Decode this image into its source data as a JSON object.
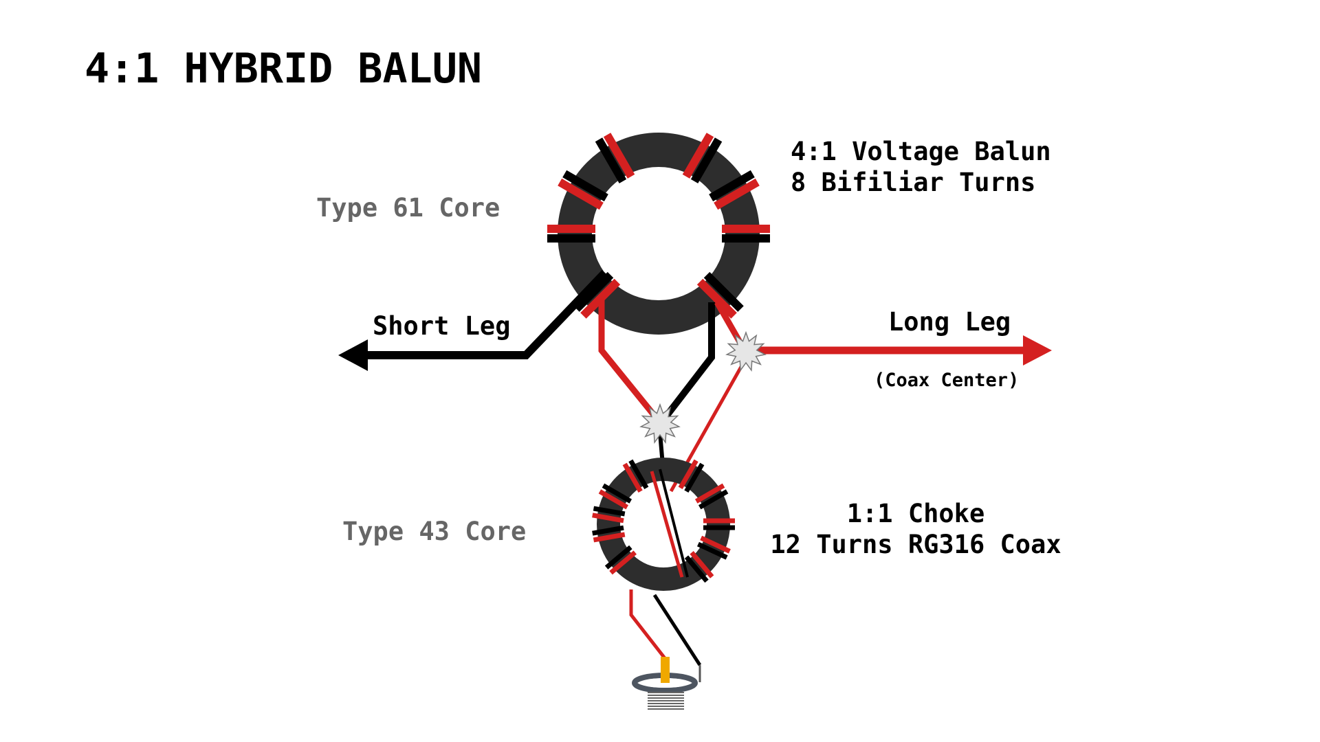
{
  "title": "4:1 HYBRID BALUN",
  "voltage_balun": {
    "line1": "4:1 Voltage Balun",
    "line2": "8 Bifiliar Turns",
    "core_label": "Type 61 Core"
  },
  "choke": {
    "line1": "1:1 Choke",
    "line2": "12 Turns RG316 Coax",
    "core_label": "Type 43 Core"
  },
  "short_leg": {
    "label": "Short Leg"
  },
  "long_leg": {
    "label": "Long Leg",
    "note": "(Coax Center)"
  },
  "colors": {
    "core": "#2d2d2d",
    "wire_red": "#d42020",
    "wire_black": "#000000",
    "junction_fill": "#e6e6e6",
    "connector_pin": "#f0a800",
    "connector_ring": "#4d5560",
    "connector_thread": "#666666",
    "label_gray": "#666666"
  }
}
